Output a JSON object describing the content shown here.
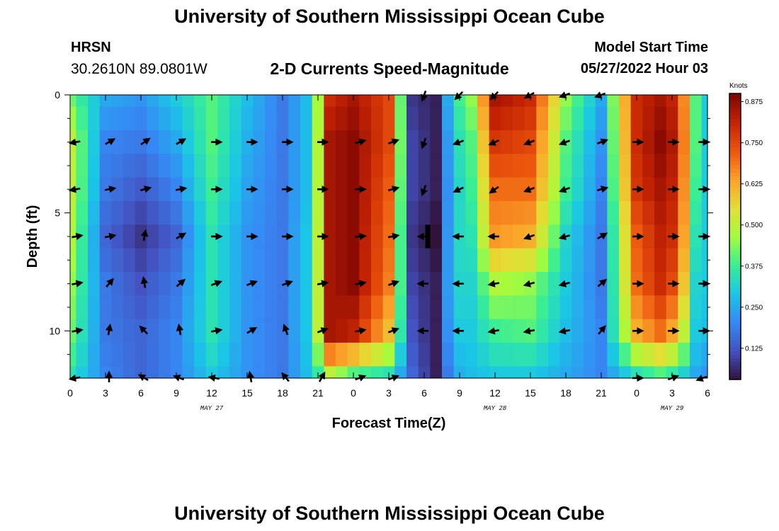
{
  "header": {
    "title": "University of Southern Mississippi Ocean Cube",
    "station": "HRSN",
    "coords": "30.2610N  89.0801W",
    "plot_title": "2-D Currents Speed-Magnitude",
    "model_start_label": "Model Start Time",
    "model_start_value": "05/27/2022 Hour 03"
  },
  "footer": {
    "title": "University of Southern Mississippi Ocean Cube"
  },
  "chart_data": {
    "type": "heatmap",
    "title": "2-D Currents Speed-Magnitude",
    "xlabel": "Forecast Time(Z)",
    "ylabel": "Depth (ft)",
    "x_unit": "hours from 00Z May 27",
    "xlim": [
      0,
      54
    ],
    "ylim": [
      12,
      0
    ],
    "x_ticks": [
      0,
      3,
      6,
      9,
      12,
      15,
      18,
      21,
      24,
      27,
      30,
      33,
      36,
      39,
      42,
      45,
      48,
      51,
      54
    ],
    "x_tick_labels": [
      "0",
      "3",
      "6",
      "9",
      "12",
      "15",
      "18",
      "21",
      "0",
      "3",
      "6",
      "9",
      "12",
      "15",
      "18",
      "21",
      "0",
      "3",
      "6"
    ],
    "y_ticks": [
      0,
      5,
      10
    ],
    "y_tick_labels": [
      "0",
      "5",
      "10"
    ],
    "date_labels": [
      {
        "x": 12,
        "text": "MAY 27"
      },
      {
        "x": 36,
        "text": "MAY 28"
      },
      {
        "x": 51,
        "text": "MAY 29"
      }
    ],
    "colorbar": {
      "label": "Knots",
      "range": [
        0.03,
        0.9
      ],
      "ticks": [
        0.125,
        0.25,
        0.375,
        0.5,
        0.625,
        0.75,
        0.875
      ],
      "tick_labels": [
        "0.125",
        "0.250",
        "0.375",
        "0.500",
        "0.625",
        "0.750",
        "0.875"
      ]
    },
    "grid": {
      "x": [
        0,
        1,
        2,
        3,
        4,
        5,
        6,
        7,
        8,
        9,
        10,
        11,
        12,
        13,
        14,
        15,
        16,
        17,
        18,
        19,
        20,
        21,
        22,
        23,
        24,
        25,
        26,
        27,
        28,
        29,
        30,
        31,
        32,
        33,
        34,
        35,
        36,
        37,
        38,
        39,
        40,
        41,
        42,
        43,
        44,
        45,
        46,
        47,
        48,
        49,
        50,
        51,
        52,
        53,
        54
      ],
      "depth": [
        0,
        1,
        2,
        3,
        4,
        5,
        6,
        7,
        8,
        9,
        10,
        11,
        12
      ],
      "x_knots": [
        0,
        3,
        6,
        9,
        12,
        15,
        18,
        20.5,
        22,
        24,
        27,
        29,
        31,
        32.5,
        34,
        36,
        39,
        42,
        45,
        48,
        50,
        51.5,
        53,
        54
      ],
      "depth_knots": [
        0,
        2,
        4,
        6,
        8,
        10,
        12
      ],
      "speed_knots": [
        [
          0.42,
          0.25,
          0.22,
          0.3,
          0.4,
          0.28,
          0.18,
          0.3,
          0.8,
          0.85,
          0.75,
          0.08,
          0.05,
          0.35,
          0.45,
          0.85,
          0.8,
          0.45,
          0.25,
          0.8,
          0.85,
          0.8,
          0.4,
          0.3
        ],
        [
          0.5,
          0.2,
          0.18,
          0.25,
          0.4,
          0.26,
          0.18,
          0.3,
          0.85,
          0.88,
          0.75,
          0.1,
          0.05,
          0.32,
          0.4,
          0.78,
          0.75,
          0.4,
          0.22,
          0.8,
          0.88,
          0.82,
          0.4,
          0.3
        ],
        [
          0.5,
          0.18,
          0.13,
          0.2,
          0.38,
          0.24,
          0.18,
          0.3,
          0.85,
          0.88,
          0.72,
          0.1,
          0.05,
          0.3,
          0.38,
          0.7,
          0.7,
          0.38,
          0.2,
          0.78,
          0.85,
          0.8,
          0.38,
          0.3
        ],
        [
          0.48,
          0.15,
          0.08,
          0.15,
          0.35,
          0.22,
          0.18,
          0.32,
          0.85,
          0.88,
          0.7,
          0.08,
          0.03,
          0.32,
          0.35,
          0.65,
          0.62,
          0.32,
          0.18,
          0.72,
          0.82,
          0.78,
          0.35,
          0.3
        ],
        [
          0.45,
          0.18,
          0.12,
          0.18,
          0.35,
          0.22,
          0.18,
          0.32,
          0.85,
          0.88,
          0.68,
          0.1,
          0.05,
          0.32,
          0.32,
          0.48,
          0.45,
          0.3,
          0.18,
          0.7,
          0.8,
          0.72,
          0.32,
          0.3
        ],
        [
          0.42,
          0.18,
          0.15,
          0.2,
          0.35,
          0.22,
          0.18,
          0.32,
          0.85,
          0.82,
          0.6,
          0.12,
          0.05,
          0.3,
          0.3,
          0.38,
          0.4,
          0.28,
          0.2,
          0.62,
          0.7,
          0.6,
          0.3,
          0.28
        ],
        [
          0.35,
          0.2,
          0.15,
          0.2,
          0.3,
          0.22,
          0.18,
          0.3,
          0.5,
          0.4,
          0.35,
          0.15,
          0.05,
          0.25,
          0.28,
          0.3,
          0.3,
          0.25,
          0.2,
          0.35,
          0.4,
          0.35,
          0.25,
          0.22
        ]
      ]
    },
    "arrows": {
      "x": [
        0.5,
        3.3,
        6.3,
        9.3,
        12.3,
        15.3,
        18.3,
        21.3,
        24.5,
        27.3,
        30,
        33,
        36,
        39,
        42,
        45,
        48,
        51,
        53.6
      ],
      "depth": [
        0,
        2,
        4,
        6,
        8,
        10,
        12
      ],
      "angle_deg": [
        [
          null,
          null,
          null,
          null,
          null,
          null,
          null,
          null,
          null,
          null,
          250,
          225,
          225,
          210,
          200,
          200,
          null,
          null,
          null
        ],
        [
          190,
          30,
          35,
          30,
          0,
          0,
          0,
          0,
          15,
          20,
          250,
          200,
          205,
          200,
          200,
          20,
          0,
          0,
          0
        ],
        [
          190,
          10,
          15,
          10,
          0,
          0,
          0,
          0,
          0,
          15,
          250,
          205,
          215,
          200,
          200,
          15,
          0,
          0,
          0
        ],
        [
          10,
          10,
          80,
          30,
          0,
          0,
          0,
          0,
          5,
          10,
          180,
          180,
          180,
          200,
          195,
          30,
          0,
          0,
          0
        ],
        [
          10,
          50,
          100,
          40,
          20,
          20,
          20,
          10,
          10,
          20,
          180,
          180,
          190,
          195,
          195,
          40,
          0,
          0,
          0
        ],
        [
          10,
          80,
          135,
          100,
          10,
          30,
          110,
          20,
          10,
          20,
          180,
          180,
          190,
          190,
          190,
          50,
          0,
          0,
          0
        ],
        [
          190,
          90,
          150,
          160,
          170,
          100,
          130,
          60,
          20,
          20,
          null,
          null,
          null,
          null,
          null,
          null,
          0,
          20,
          200
        ]
      ]
    },
    "marker": {
      "x": 30.3,
      "depth_range": [
        5.5,
        6.5
      ]
    }
  }
}
